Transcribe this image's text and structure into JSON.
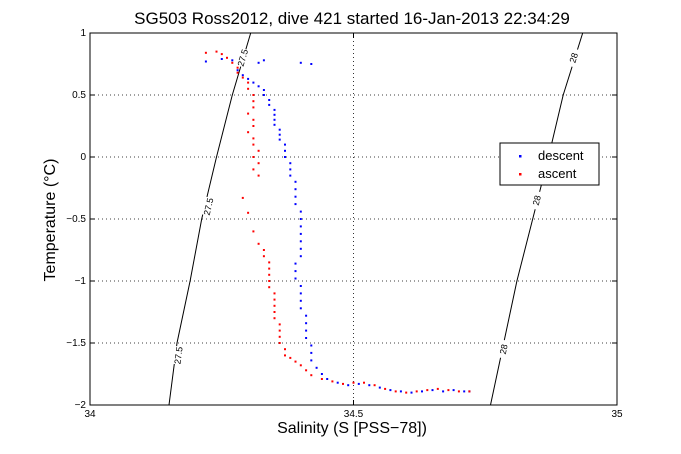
{
  "chart_data": {
    "type": "scatter",
    "title": "SG503 Ross2012, dive 421 started 16-Jan-2013 22:34:29",
    "xlabel": "Salinity (S [PSS−78])",
    "ylabel": "Temperature (°C)",
    "xlim": [
      34,
      35
    ],
    "ylim": [
      -2,
      1
    ],
    "xticks": [
      34,
      34.5,
      35
    ],
    "xtick_labels": [
      "34",
      "34.5",
      "35"
    ],
    "yticks": [
      -2,
      -1.5,
      -1,
      -0.5,
      0,
      0.5,
      1
    ],
    "ytick_labels": [
      "−2",
      "−1.5",
      "−1",
      "−0.5",
      "0",
      "0.5",
      "1"
    ],
    "grid": true,
    "legend_position": "right",
    "series": [
      {
        "name": "descent",
        "color": "#0000ff",
        "marker": "dot",
        "points": [
          [
            34.22,
            0.77
          ],
          [
            34.25,
            0.79
          ],
          [
            34.27,
            0.78
          ],
          [
            34.32,
            0.76
          ],
          [
            34.33,
            0.78
          ],
          [
            34.4,
            0.76
          ],
          [
            34.42,
            0.75
          ],
          [
            34.28,
            0.7
          ],
          [
            34.29,
            0.66
          ],
          [
            34.3,
            0.63
          ],
          [
            34.31,
            0.6
          ],
          [
            34.32,
            0.57
          ],
          [
            34.33,
            0.54
          ],
          [
            34.33,
            0.5
          ],
          [
            34.34,
            0.46
          ],
          [
            34.34,
            0.42
          ],
          [
            34.35,
            0.38
          ],
          [
            34.35,
            0.34
          ],
          [
            34.35,
            0.3
          ],
          [
            34.35,
            0.26
          ],
          [
            34.36,
            0.22
          ],
          [
            34.36,
            0.18
          ],
          [
            34.36,
            0.14
          ],
          [
            34.37,
            0.1
          ],
          [
            34.37,
            0.05
          ],
          [
            34.37,
            0.0
          ],
          [
            34.38,
            -0.05
          ],
          [
            34.38,
            -0.1
          ],
          [
            34.38,
            -0.15
          ],
          [
            34.39,
            -0.2
          ],
          [
            34.39,
            -0.26
          ],
          [
            34.39,
            -0.32
          ],
          [
            34.39,
            -0.38
          ],
          [
            34.4,
            -0.44
          ],
          [
            34.4,
            -0.5
          ],
          [
            34.4,
            -0.56
          ],
          [
            34.4,
            -0.62
          ],
          [
            34.4,
            -0.68
          ],
          [
            34.4,
            -0.74
          ],
          [
            34.4,
            -0.8
          ],
          [
            34.39,
            -0.86
          ],
          [
            34.39,
            -0.92
          ],
          [
            34.39,
            -0.98
          ],
          [
            34.4,
            -1.04
          ],
          [
            34.4,
            -1.1
          ],
          [
            34.4,
            -1.16
          ],
          [
            34.4,
            -1.22
          ],
          [
            34.41,
            -1.28
          ],
          [
            34.41,
            -1.34
          ],
          [
            34.41,
            -1.4
          ],
          [
            34.41,
            -1.46
          ],
          [
            34.42,
            -1.52
          ],
          [
            34.42,
            -1.58
          ],
          [
            34.42,
            -1.64
          ],
          [
            34.43,
            -1.7
          ],
          [
            34.44,
            -1.75
          ],
          [
            34.45,
            -1.79
          ],
          [
            34.47,
            -1.82
          ],
          [
            34.49,
            -1.84
          ],
          [
            34.51,
            -1.83
          ],
          [
            34.53,
            -1.84
          ],
          [
            34.55,
            -1.86
          ],
          [
            34.57,
            -1.88
          ],
          [
            34.59,
            -1.89
          ],
          [
            34.61,
            -1.9
          ],
          [
            34.63,
            -1.89
          ],
          [
            34.65,
            -1.88
          ],
          [
            34.67,
            -1.89
          ],
          [
            34.69,
            -1.88
          ],
          [
            34.71,
            -1.89
          ],
          [
            34.72,
            -1.89
          ]
        ]
      },
      {
        "name": "ascent",
        "color": "#ff0000",
        "marker": "dot",
        "points": [
          [
            34.22,
            0.84
          ],
          [
            34.24,
            0.85
          ],
          [
            34.25,
            0.83
          ],
          [
            34.26,
            0.8
          ],
          [
            34.27,
            0.76
          ],
          [
            34.28,
            0.72
          ],
          [
            34.28,
            0.68
          ],
          [
            34.29,
            0.64
          ],
          [
            34.3,
            0.6
          ],
          [
            34.3,
            0.55
          ],
          [
            34.31,
            0.5
          ],
          [
            34.31,
            0.45
          ],
          [
            34.31,
            0.4
          ],
          [
            34.3,
            0.35
          ],
          [
            34.31,
            0.3
          ],
          [
            34.31,
            0.25
          ],
          [
            34.3,
            0.2
          ],
          [
            34.31,
            0.15
          ],
          [
            34.31,
            0.1
          ],
          [
            34.32,
            0.05
          ],
          [
            34.31,
            0.0
          ],
          [
            34.32,
            -0.05
          ],
          [
            34.31,
            -0.1
          ],
          [
            34.32,
            -0.15
          ],
          [
            34.29,
            -0.33
          ],
          [
            34.3,
            -0.45
          ],
          [
            34.31,
            -0.6
          ],
          [
            34.32,
            -0.7
          ],
          [
            34.33,
            -0.75
          ],
          [
            34.33,
            -0.8
          ],
          [
            34.34,
            -0.85
          ],
          [
            34.34,
            -0.9
          ],
          [
            34.34,
            -0.95
          ],
          [
            34.34,
            -1.0
          ],
          [
            34.34,
            -1.05
          ],
          [
            34.35,
            -1.1
          ],
          [
            34.35,
            -1.15
          ],
          [
            34.35,
            -1.2
          ],
          [
            34.35,
            -1.25
          ],
          [
            34.35,
            -1.3
          ],
          [
            34.36,
            -1.35
          ],
          [
            34.36,
            -1.4
          ],
          [
            34.36,
            -1.45
          ],
          [
            34.36,
            -1.5
          ],
          [
            34.37,
            -1.55
          ],
          [
            34.37,
            -1.6
          ],
          [
            34.38,
            -1.62
          ],
          [
            34.39,
            -1.65
          ],
          [
            34.4,
            -1.68
          ],
          [
            34.41,
            -1.72
          ],
          [
            34.42,
            -1.76
          ],
          [
            34.44,
            -1.79
          ],
          [
            34.46,
            -1.81
          ],
          [
            34.48,
            -1.83
          ],
          [
            34.5,
            -1.82
          ],
          [
            34.52,
            -1.82
          ],
          [
            34.54,
            -1.84
          ],
          [
            34.56,
            -1.87
          ],
          [
            34.58,
            -1.89
          ],
          [
            34.6,
            -1.9
          ],
          [
            34.62,
            -1.89
          ],
          [
            34.64,
            -1.88
          ],
          [
            34.66,
            -1.87
          ],
          [
            34.68,
            -1.88
          ],
          [
            34.7,
            -1.89
          ],
          [
            34.72,
            -1.89
          ]
        ]
      }
    ],
    "density_contours": [
      {
        "label": "27.5",
        "color": "#000000",
        "points": [
          [
            34.305,
            1.0
          ],
          [
            34.27,
            0.5
          ],
          [
            34.24,
            0.0
          ],
          [
            34.212,
            -0.5
          ],
          [
            34.19,
            -1.0
          ],
          [
            34.165,
            -1.5
          ],
          [
            34.15,
            -2.0
          ]
        ],
        "label_positions": [
          [
            34.29,
            0.8
          ],
          [
            34.225,
            -0.4
          ],
          [
            34.168,
            -1.6
          ]
        ]
      },
      {
        "label": "28",
        "color": "#000000",
        "points": [
          [
            34.935,
            1.0
          ],
          [
            34.898,
            0.5
          ],
          [
            34.87,
            0.0
          ],
          [
            34.84,
            -0.5
          ],
          [
            34.81,
            -1.0
          ],
          [
            34.785,
            -1.5
          ],
          [
            34.76,
            -2.0
          ]
        ],
        "label_positions": [
          [
            34.918,
            0.8
          ],
          [
            34.848,
            -0.35
          ],
          [
            34.785,
            -1.55
          ]
        ]
      }
    ]
  }
}
